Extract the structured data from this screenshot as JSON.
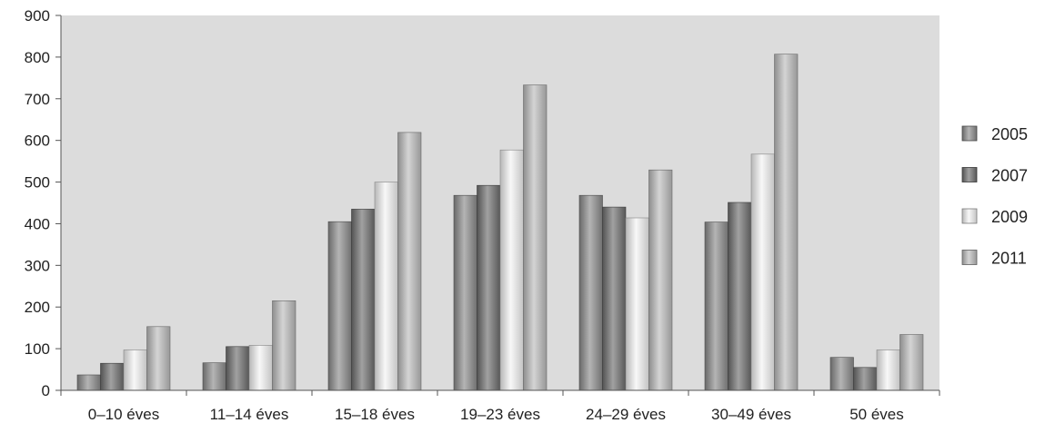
{
  "chart_data": {
    "type": "bar",
    "title": "",
    "xlabel": "",
    "ylabel": "",
    "categories": [
      "0–10 éves",
      "11–14 éves",
      "15–18 éves",
      "19–23 éves",
      "24–29 éves",
      "30–49 éves",
      "50 éves"
    ],
    "series": [
      {
        "name": "2005",
        "values": [
          37,
          66,
          405,
          468,
          468,
          404,
          79
        ],
        "color": "#8c8c8c"
      },
      {
        "name": "2007",
        "values": [
          65,
          105,
          435,
          492,
          440,
          451,
          55
        ],
        "color": "#6e6e6e"
      },
      {
        "name": "2009",
        "values": [
          97,
          108,
          500,
          577,
          414,
          567,
          97
        ],
        "color": "#f4f4f4"
      },
      {
        "name": "2011",
        "values": [
          153,
          215,
          619,
          733,
          529,
          807,
          134
        ],
        "color": "#bdbdbd"
      }
    ],
    "ylim": [
      0,
      900
    ],
    "yticks": [
      0,
      100,
      200,
      300,
      400,
      500,
      600,
      700,
      800,
      900
    ],
    "grid": false,
    "legend_position": "right",
    "plot_background": "#dcdcdc"
  }
}
